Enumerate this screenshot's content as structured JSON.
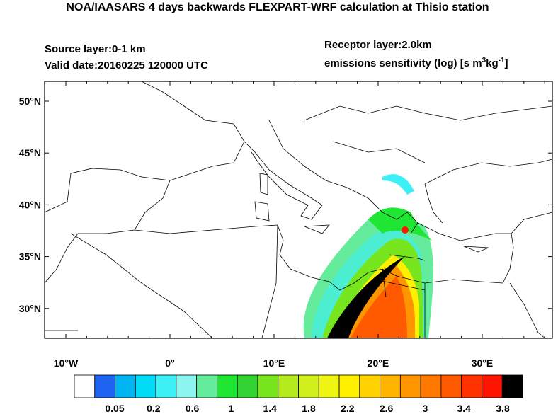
{
  "title": "NOA/IAASARS 4 days backwards FLEXPART-WRF calculation at Thisio station",
  "source_layer": "Source layer:0-1 km",
  "valid_date": "Valid date:20160225 120000 UTC",
  "receptor_layer": "Receptor layer:2.0km",
  "units": {
    "text": "emissions sensitivity (log) [s m",
    "sup1": "3",
    "mid": "kg",
    "sup2": "-1",
    "end": "]"
  },
  "lat_labels": [
    "50°N",
    "45°N",
    "40°N",
    "35°N",
    "30°N"
  ],
  "lon_labels": [
    "10°W",
    "0°",
    "10°E",
    "20°E",
    "30°E"
  ],
  "colorbar": {
    "colors": [
      "#ffffff",
      "#1e64f0",
      "#00b4f0",
      "#00dcf5",
      "#3cf0f5",
      "#8cf5f0",
      "#64eb9b",
      "#1ee632",
      "#32d232",
      "#78e61e",
      "#b4eb1e",
      "#d2f01e",
      "#f0f514",
      "#fff000",
      "#ffd200",
      "#ffb400",
      "#ff9600",
      "#ff7800",
      "#ff5a00",
      "#ff3200",
      "#ff1400",
      "#000000"
    ],
    "labels": [
      "0.05",
      "0.2",
      "0.6",
      "1",
      "1.4",
      "1.8",
      "2.2",
      "2.6",
      "3",
      "3.4",
      "3.8"
    ]
  }
}
